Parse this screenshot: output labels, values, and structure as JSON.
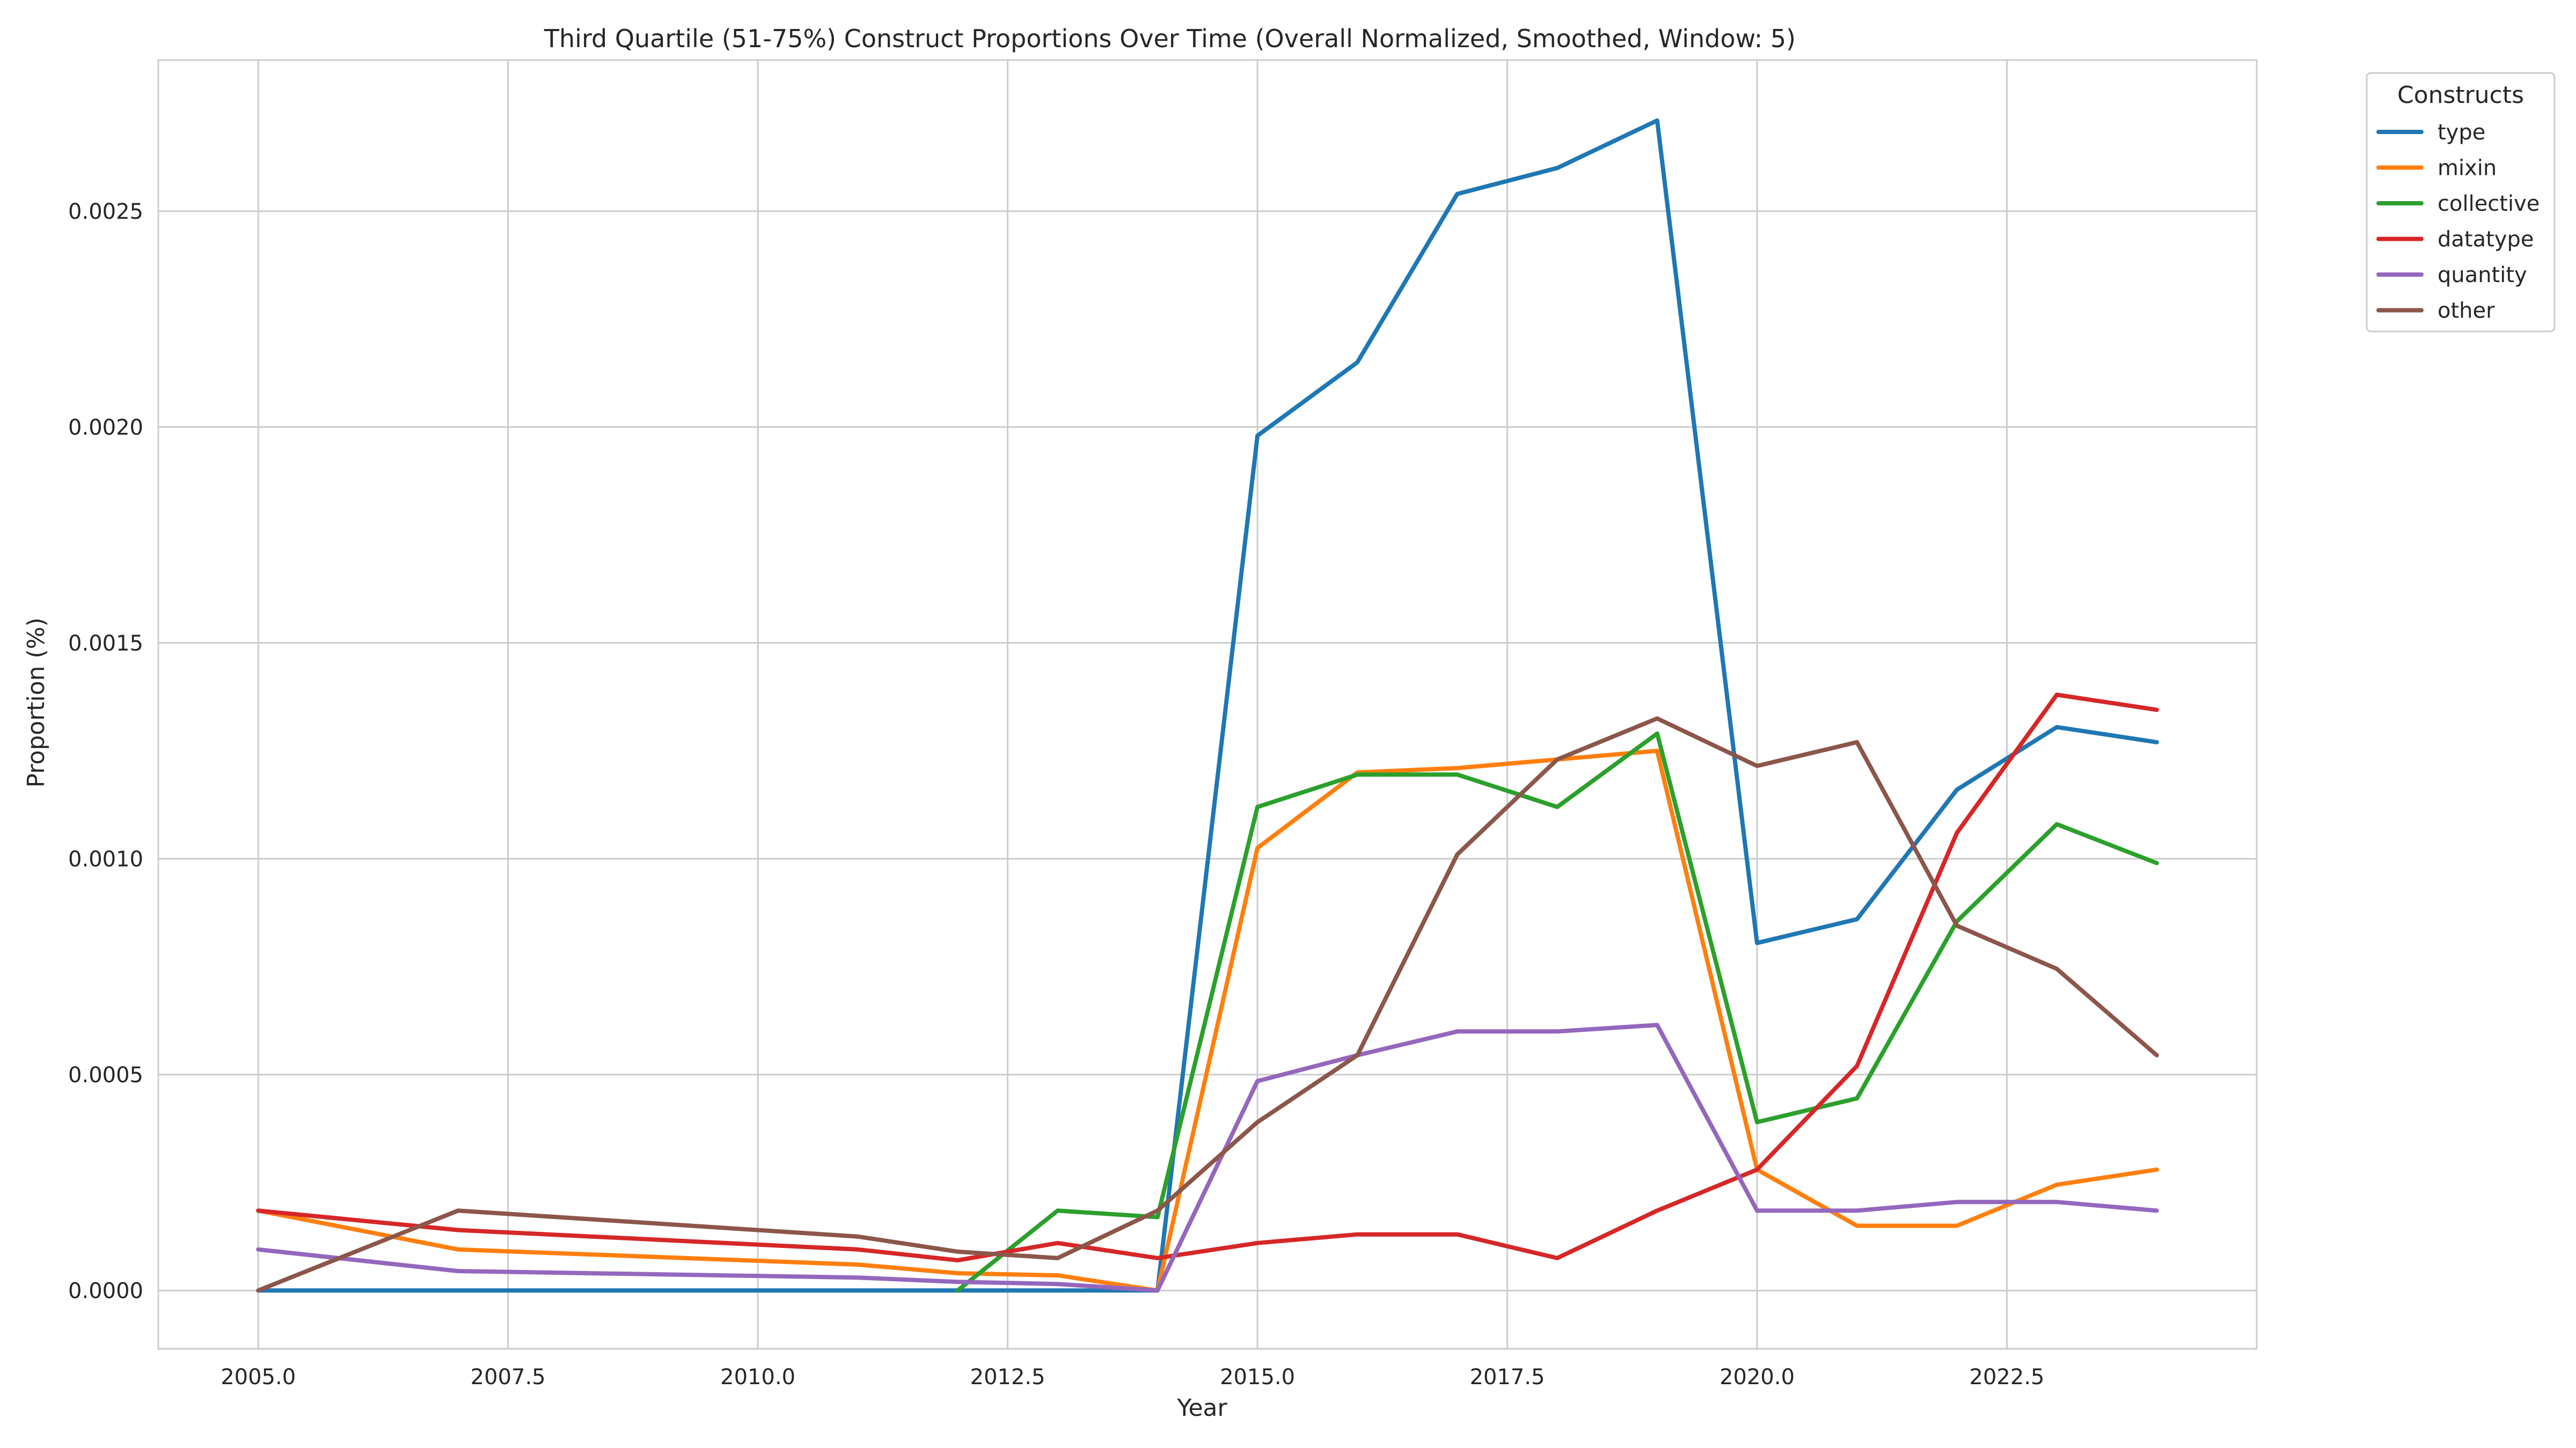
{
  "chart_data": {
    "type": "line",
    "title": "Third Quartile (51-75%) Construct Proportions Over Time (Overall Normalized, Smoothed, Window: 5)",
    "xlabel": "Year",
    "ylabel": "Proportion (%)",
    "xlim": [
      2004.0,
      2025.0
    ],
    "ylim": [
      -0.000135,
      0.00285
    ],
    "xticks": [
      2005.0,
      2007.5,
      2010.0,
      2012.5,
      2015.0,
      2017.5,
      2020.0,
      2022.5
    ],
    "xtick_labels": [
      "2005.0",
      "2007.5",
      "2010.0",
      "2012.5",
      "2015.0",
      "2017.5",
      "2020.0",
      "2022.5"
    ],
    "yticks": [
      0.0,
      0.0005,
      0.001,
      0.0015,
      0.002,
      0.0025
    ],
    "ytick_labels": [
      "0.0000",
      "0.0005",
      "0.0010",
      "0.0015",
      "0.0020",
      "0.0025"
    ],
    "grid": true,
    "legend": {
      "title": "Constructs",
      "placement": "outside top-right"
    },
    "series": [
      {
        "name": "type",
        "color": "#1f77b4",
        "points": [
          [
            2005,
            0.0
          ],
          [
            2007,
            0.0
          ],
          [
            2011,
            0.0
          ],
          [
            2012,
            0.0
          ],
          [
            2013,
            0.0
          ],
          [
            2014,
            0.0
          ],
          [
            2015,
            0.00198
          ],
          [
            2016,
            0.00215
          ],
          [
            2017,
            0.00254
          ],
          [
            2018,
            0.0026
          ],
          [
            2019,
            0.00271
          ],
          [
            2020,
            0.000805
          ],
          [
            2021,
            0.00086
          ],
          [
            2022,
            0.00116
          ],
          [
            2023,
            0.001305
          ],
          [
            2024,
            0.00127
          ]
        ]
      },
      {
        "name": "mixin",
        "color": "#ff7f0e",
        "points": [
          [
            2005,
            0.000185
          ],
          [
            2007,
            9.5e-05
          ],
          [
            2011,
            6e-05
          ],
          [
            2012,
            4e-05
          ],
          [
            2013,
            3.5e-05
          ],
          [
            2014,
            0.0
          ],
          [
            2015,
            0.001025
          ],
          [
            2016,
            0.0012
          ],
          [
            2017,
            0.00121
          ],
          [
            2018,
            0.00123
          ],
          [
            2019,
            0.00125
          ],
          [
            2020,
            0.00028
          ],
          [
            2021,
            0.00015
          ],
          [
            2022,
            0.00015
          ],
          [
            2023,
            0.000245
          ],
          [
            2024,
            0.00028
          ]
        ]
      },
      {
        "name": "collective",
        "color": "#2ca02c",
        "points": [
          [
            2012,
            0.0
          ],
          [
            2013,
            0.000185
          ],
          [
            2014,
            0.00017
          ],
          [
            2015,
            0.00112
          ],
          [
            2016,
            0.001195
          ],
          [
            2017,
            0.001195
          ],
          [
            2018,
            0.00112
          ],
          [
            2019,
            0.00129
          ],
          [
            2020,
            0.00039
          ],
          [
            2021,
            0.000445
          ],
          [
            2022,
            0.000855
          ],
          [
            2023,
            0.00108
          ],
          [
            2024,
            0.00099
          ]
        ]
      },
      {
        "name": "datatype",
        "color": "#d62728",
        "points": [
          [
            2005,
            0.000185
          ],
          [
            2007,
            0.00014
          ],
          [
            2011,
            9.5e-05
          ],
          [
            2012,
            7e-05
          ],
          [
            2013,
            0.00011
          ],
          [
            2014,
            7.5e-05
          ],
          [
            2015,
            0.00011
          ],
          [
            2016,
            0.00013
          ],
          [
            2017,
            0.00013
          ],
          [
            2018,
            7.5e-05
          ],
          [
            2019,
            0.000185
          ],
          [
            2020,
            0.00028
          ],
          [
            2021,
            0.00052
          ],
          [
            2022,
            0.00106
          ],
          [
            2023,
            0.00138
          ],
          [
            2024,
            0.001345
          ]
        ]
      },
      {
        "name": "quantity",
        "color": "#9467bd",
        "points": [
          [
            2005,
            9.5e-05
          ],
          [
            2007,
            4.5e-05
          ],
          [
            2011,
            3e-05
          ],
          [
            2012,
            2e-05
          ],
          [
            2013,
            1.5e-05
          ],
          [
            2014,
            0.0
          ],
          [
            2015,
            0.000485
          ],
          [
            2016,
            0.000545
          ],
          [
            2017,
            0.0006
          ],
          [
            2018,
            0.0006
          ],
          [
            2019,
            0.000615
          ],
          [
            2020,
            0.000185
          ],
          [
            2021,
            0.000185
          ],
          [
            2022,
            0.000205
          ],
          [
            2023,
            0.000205
          ],
          [
            2024,
            0.000185
          ]
        ]
      },
      {
        "name": "other",
        "color": "#8c564b",
        "points": [
          [
            2005,
            0.0
          ],
          [
            2007,
            0.000185
          ],
          [
            2011,
            0.000125
          ],
          [
            2012,
            9e-05
          ],
          [
            2013,
            7.5e-05
          ],
          [
            2014,
            0.000185
          ],
          [
            2015,
            0.00039
          ],
          [
            2016,
            0.000545
          ],
          [
            2017,
            0.00101
          ],
          [
            2018,
            0.00123
          ],
          [
            2019,
            0.001325
          ],
          [
            2020,
            0.001215
          ],
          [
            2021,
            0.00127
          ],
          [
            2022,
            0.000845
          ],
          [
            2023,
            0.000745
          ],
          [
            2024,
            0.000545
          ]
        ]
      }
    ]
  }
}
